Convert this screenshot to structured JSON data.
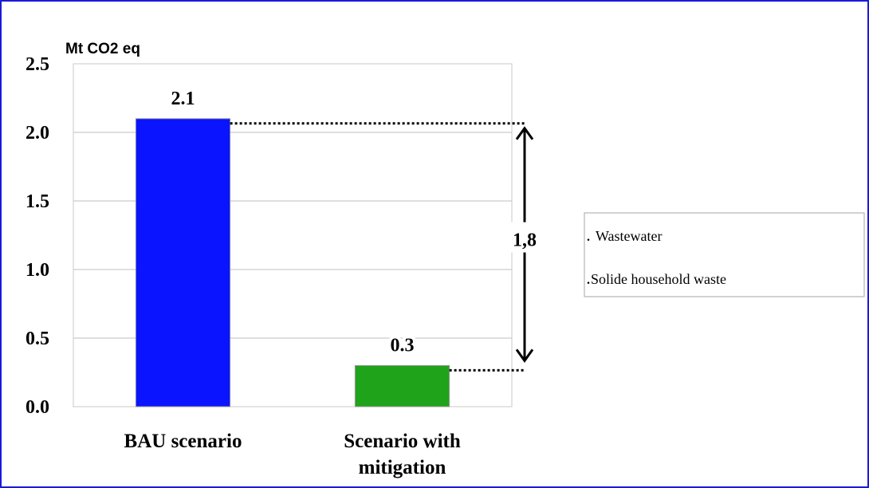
{
  "chart_data": {
    "type": "bar",
    "ylabel": "Mt CO2 eq",
    "ylim": [
      0,
      2.5
    ],
    "yticks": [
      "0.0",
      "0.5",
      "1.0",
      "1.5",
      "2.0",
      "2.5"
    ],
    "categories": [
      "BAU scenario",
      "Scenario with mitigation"
    ],
    "category_lines": [
      [
        "BAU scenario"
      ],
      [
        "Scenario with",
        "mitigation"
      ]
    ],
    "values": [
      2.1,
      0.3
    ],
    "value_labels": [
      "2.1",
      "0.3"
    ],
    "bar_colors": [
      "#0a14ff",
      "#1fa31a"
    ],
    "difference_label": "1,8",
    "legend": [
      "Wastewater",
      "Solide household waste"
    ],
    "legend_position": "right",
    "grid": true
  },
  "colors": {
    "frame": "#1a1ad6",
    "gridline": "#bfbfbf",
    "bau_bar": "#0a14ff",
    "mitigation_bar": "#1fa31a"
  }
}
